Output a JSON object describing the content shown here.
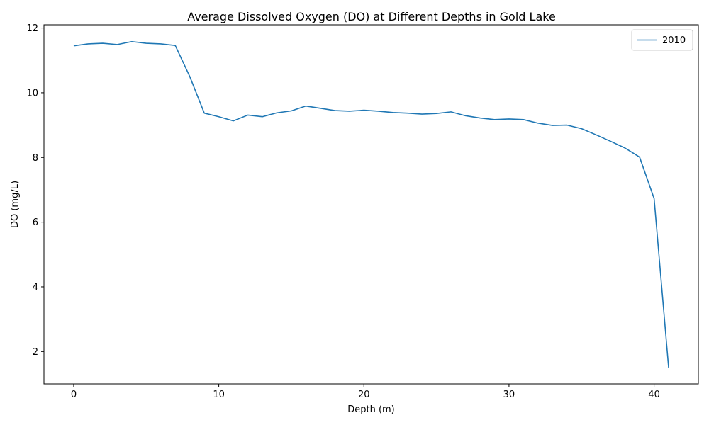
{
  "chart_data": {
    "type": "line",
    "title": "Average Dissolved Oxygen (DO) at Different Depths in Gold Lake",
    "xlabel": "Depth (m)",
    "ylabel": "DO (mg/L)",
    "xlim": [
      -2.05,
      43.05
    ],
    "ylim": [
      1.0,
      12.1
    ],
    "xticks": [
      0,
      10,
      20,
      30,
      40
    ],
    "yticks": [
      2,
      4,
      6,
      8,
      10,
      12
    ],
    "grid": false,
    "legend_position": "top-right",
    "series": [
      {
        "name": "2010",
        "color": "#1f77b4",
        "x": [
          0,
          1,
          2,
          3,
          4,
          5,
          6,
          7,
          8,
          9,
          10,
          11,
          12,
          13,
          14,
          15,
          16,
          17,
          18,
          19,
          20,
          21,
          22,
          23,
          24,
          25,
          26,
          27,
          28,
          29,
          30,
          31,
          32,
          33,
          34,
          35,
          36,
          37,
          38,
          39,
          40,
          41
        ],
        "y": [
          11.45,
          11.51,
          11.53,
          11.49,
          11.58,
          11.53,
          11.51,
          11.46,
          10.5,
          9.37,
          9.26,
          9.13,
          9.31,
          9.26,
          9.38,
          9.44,
          9.59,
          9.52,
          9.45,
          9.43,
          9.46,
          9.43,
          9.39,
          9.37,
          9.34,
          9.36,
          9.41,
          9.29,
          9.22,
          9.17,
          9.19,
          9.17,
          9.06,
          8.99,
          9.0,
          8.89,
          8.7,
          8.5,
          8.29,
          8.01,
          6.73,
          1.5
        ]
      }
    ]
  }
}
